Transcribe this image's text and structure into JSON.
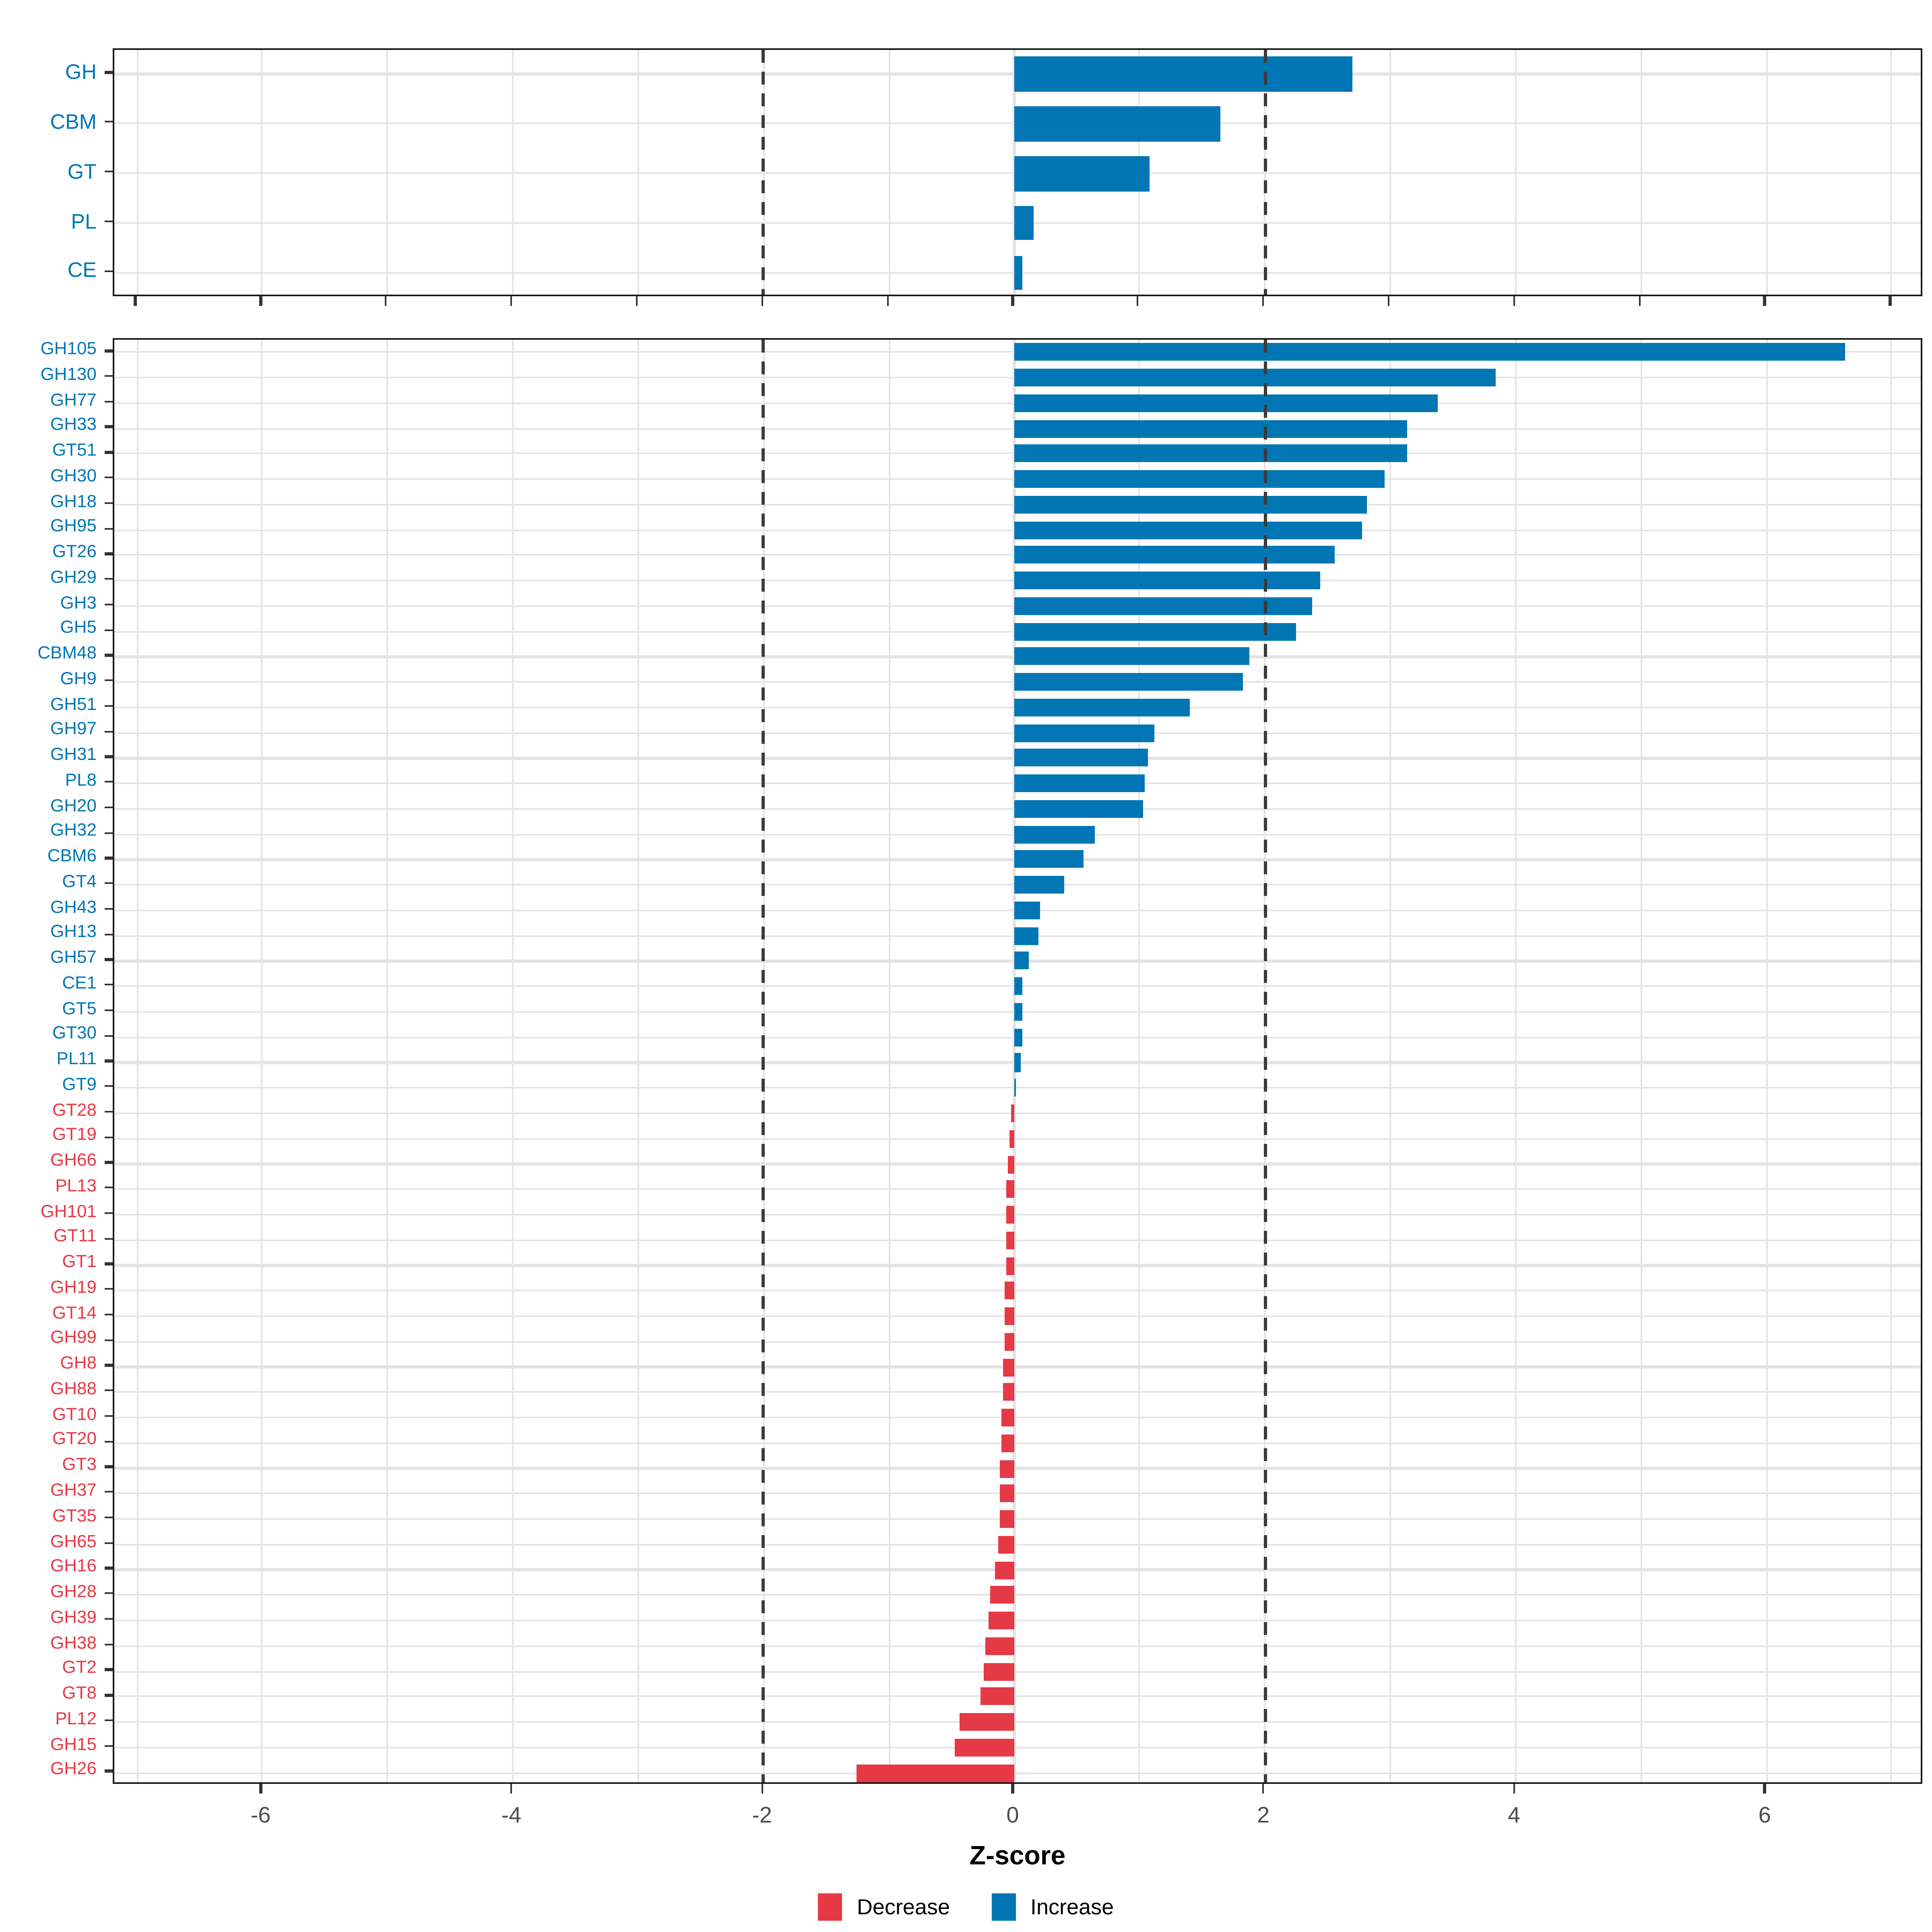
{
  "chart_data": [
    {
      "type": "bar",
      "orientation": "horizontal",
      "title": "",
      "panel": "enzyme-class-summary",
      "categories": [
        "GH",
        "CBM",
        "GT",
        "PL",
        "CE"
      ],
      "values": [
        2.7,
        1.64,
        1.08,
        0.16,
        0.07
      ],
      "xlim": [
        -7.2,
        7.26
      ],
      "grid": true,
      "x_tick_step": 1
    },
    {
      "type": "bar",
      "orientation": "horizontal",
      "title": "",
      "panel": "enzyme-families",
      "categories": [
        "GH105",
        "GH130",
        "GH77",
        "GH33",
        "GT51",
        "GH30",
        "GH18",
        "GH95",
        "GT26",
        "GH29",
        "GH3",
        "GH5",
        "CBM48",
        "GH9",
        "GH51",
        "GH97",
        "GH31",
        "PL8",
        "GH20",
        "GH32",
        "CBM6",
        "GT4",
        "GH43",
        "GH13",
        "GH57",
        "CE1",
        "GT5",
        "GT30",
        "PL11",
        "GT9",
        "GT28",
        "GT19",
        "GH66",
        "PL13",
        "GH101",
        "GT11",
        "GT1",
        "GH19",
        "GT14",
        "GH99",
        "GH8",
        "GH88",
        "GT10",
        "GT20",
        "GT3",
        "GH37",
        "GT35",
        "GH65",
        "GH16",
        "GH28",
        "GH39",
        "GH38",
        "GT2",
        "GT8",
        "PL12",
        "GH15",
        "GH26"
      ],
      "values": [
        6.63,
        3.84,
        3.38,
        3.14,
        3.13,
        2.96,
        2.81,
        2.78,
        2.56,
        2.44,
        2.37,
        2.25,
        1.88,
        1.82,
        1.4,
        1.12,
        1.06,
        1.04,
        1.03,
        0.64,
        0.55,
        0.4,
        0.2,
        0.19,
        0.12,
        0.07,
        0.065,
        0.06,
        0.055,
        0.015,
        -0.02,
        -0.035,
        -0.05,
        -0.06,
        -0.062,
        -0.065,
        -0.07,
        -0.072,
        -0.076,
        -0.08,
        -0.085,
        -0.09,
        -0.1,
        -0.105,
        -0.11,
        -0.115,
        -0.12,
        -0.13,
        -0.16,
        -0.19,
        -0.21,
        -0.23,
        -0.25,
        -0.27,
        -0.44,
        -0.48,
        -1.26
      ],
      "xlim": [
        -7.2,
        7.26
      ],
      "grid": true,
      "x_tick_step": 2
    }
  ],
  "axis": {
    "xlabel": "Z-score",
    "tick_values": [
      -6,
      -4,
      -2,
      0,
      2,
      4,
      6
    ],
    "tick_labels": [
      "-6",
      "-4",
      "-2",
      "0",
      "2",
      "4",
      "6"
    ],
    "reference_lines": [
      -2,
      2
    ]
  },
  "legend": [
    {
      "label": "Decrease",
      "color": "#E63946"
    },
    {
      "label": "Increase",
      "color": "#0076B4"
    }
  ],
  "colors": {
    "increase": "#0076B4",
    "decrease": "#E63946",
    "grid": "#e4e4e4",
    "axis_text": "#4d4d4d",
    "tick": "#333333",
    "panel_border": "#1a1a1a",
    "dashed_reference": "#3b3b3b"
  }
}
